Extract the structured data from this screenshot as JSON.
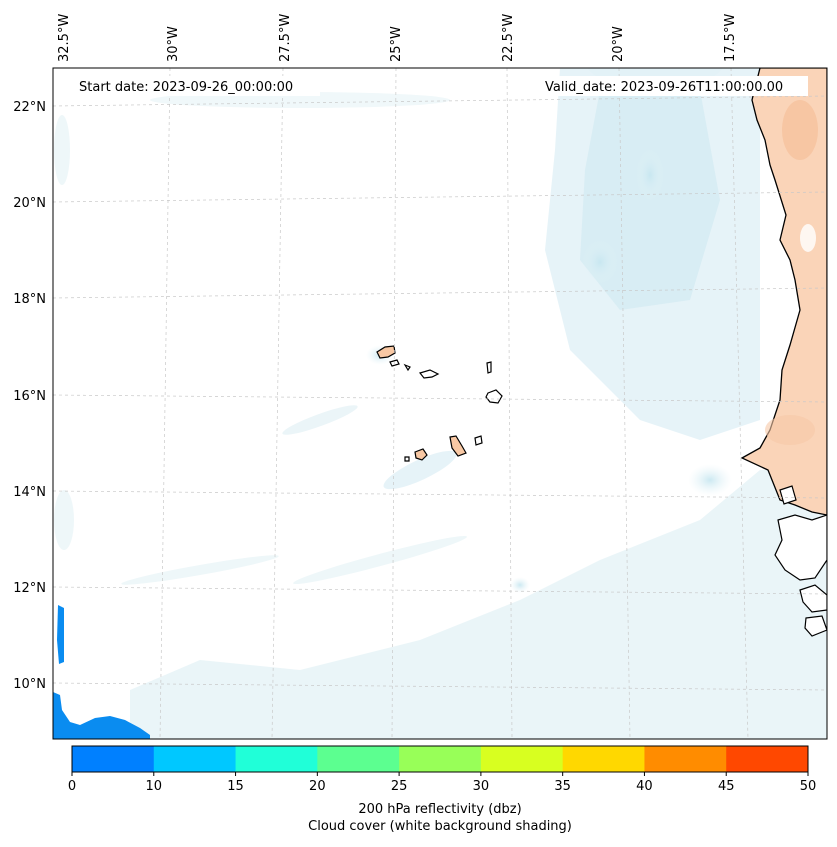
{
  "map": {
    "start_date": "Start date: 2023-09-26_00:00:00",
    "valid_date": "Valid_date: 2023-09-26T11:00:00.00",
    "lon_labels": [
      "32.5°W",
      "30°W",
      "27.5°W",
      "25°W",
      "22.5°W",
      "20°W",
      "17.5°W"
    ],
    "lat_labels": [
      "22°N",
      "20°N",
      "18°N",
      "16°N",
      "14°N",
      "12°N",
      "10°N"
    ],
    "colors": {
      "land": "#fad4b8",
      "cloud": "#d8eef4",
      "coast": "#000000",
      "grid": "#cccccc"
    }
  },
  "colorbar": {
    "title": "200 hPa reflectivity (dbz)",
    "subtitle": "Cloud cover (white background shading)",
    "ticks": [
      "0",
      "10",
      "15",
      "20",
      "25",
      "30",
      "35",
      "40",
      "45",
      "50"
    ],
    "colors": [
      "#0080ff",
      "#00c8ff",
      "#20ffd8",
      "#5cff90",
      "#98ff58",
      "#d8ff20",
      "#ffd800",
      "#ff8c00",
      "#ff4800"
    ]
  }
}
